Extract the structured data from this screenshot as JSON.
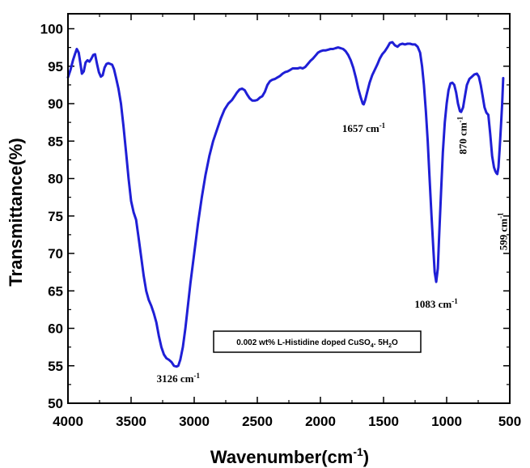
{
  "chart_data": {
    "type": "line",
    "xlabel": "Wavenumber(cm",
    "xlabel_sup": "-1",
    "xlabel_suffix": ")",
    "ylabel": "Transmittance(%)",
    "xlim": [
      4000,
      500
    ],
    "ylim": [
      50,
      102
    ],
    "x_reversed": true,
    "xticks": [
      4000,
      3500,
      3000,
      2500,
      2000,
      1500,
      1000,
      500
    ],
    "yticks": [
      50,
      55,
      60,
      65,
      70,
      75,
      80,
      85,
      90,
      95,
      100
    ],
    "grid": false,
    "line_color": "#1f1fd6",
    "legend": {
      "text_main": "0.002 wt% L-Histidine doped CuSO",
      "sub1": "4",
      "text_mid": ". 5H",
      "sub2": "2",
      "text_end": "O",
      "placement": "center-bottom"
    },
    "annotations": [
      {
        "label": "3126 cm",
        "sup": "-1",
        "x": 3126,
        "y": 55
      },
      {
        "label": "1657 cm",
        "sup": "-1",
        "x": 1657,
        "y": 90
      },
      {
        "label": "1083 cm",
        "sup": "-1",
        "x": 1083,
        "y": 66
      },
      {
        "label": "870 cm",
        "sup": "-1",
        "x": 870,
        "y": 89
      },
      {
        "label": "599 cm",
        "sup": "-1",
        "x": 599,
        "y": 80.5
      }
    ],
    "series": [
      {
        "points": [
          [
            4000,
            93.5
          ],
          [
            3980,
            94.5
          ],
          [
            3960,
            95.8
          ],
          [
            3945,
            96.6
          ],
          [
            3930,
            97.3
          ],
          [
            3915,
            96.8
          ],
          [
            3900,
            95.2
          ],
          [
            3890,
            94.0
          ],
          [
            3875,
            94.3
          ],
          [
            3860,
            95.5
          ],
          [
            3845,
            95.8
          ],
          [
            3830,
            95.6
          ],
          [
            3815,
            96.0
          ],
          [
            3800,
            96.5
          ],
          [
            3785,
            96.6
          ],
          [
            3770,
            95.3
          ],
          [
            3755,
            94.2
          ],
          [
            3740,
            93.6
          ],
          [
            3725,
            93.8
          ],
          [
            3710,
            94.8
          ],
          [
            3695,
            95.3
          ],
          [
            3680,
            95.4
          ],
          [
            3665,
            95.3
          ],
          [
            3650,
            95.2
          ],
          [
            3635,
            94.6
          ],
          [
            3620,
            93.5
          ],
          [
            3600,
            92.0
          ],
          [
            3580,
            90.0
          ],
          [
            3560,
            87.0
          ],
          [
            3540,
            83.5
          ],
          [
            3520,
            80.0
          ],
          [
            3500,
            77.0
          ],
          [
            3480,
            75.5
          ],
          [
            3460,
            74.5
          ],
          [
            3440,
            72.0
          ],
          [
            3420,
            69.5
          ],
          [
            3400,
            67.0
          ],
          [
            3380,
            65.0
          ],
          [
            3360,
            63.8
          ],
          [
            3340,
            63.0
          ],
          [
            3320,
            62.0
          ],
          [
            3300,
            60.8
          ],
          [
            3280,
            59.0
          ],
          [
            3260,
            57.5
          ],
          [
            3240,
            56.5
          ],
          [
            3220,
            56.0
          ],
          [
            3200,
            55.8
          ],
          [
            3180,
            55.5
          ],
          [
            3160,
            55.0
          ],
          [
            3140,
            54.9
          ],
          [
            3126,
            55.0
          ],
          [
            3110,
            55.8
          ],
          [
            3090,
            57.5
          ],
          [
            3070,
            60.0
          ],
          [
            3050,
            63.0
          ],
          [
            3030,
            66.0
          ],
          [
            3000,
            70.0
          ],
          [
            2970,
            74.0
          ],
          [
            2940,
            77.5
          ],
          [
            2910,
            80.5
          ],
          [
            2880,
            83.0
          ],
          [
            2850,
            85.0
          ],
          [
            2820,
            86.5
          ],
          [
            2790,
            88.0
          ],
          [
            2760,
            89.2
          ],
          [
            2730,
            90.0
          ],
          [
            2700,
            90.5
          ],
          [
            2680,
            91.0
          ],
          [
            2660,
            91.5
          ],
          [
            2640,
            91.9
          ],
          [
            2620,
            92.0
          ],
          [
            2600,
            91.8
          ],
          [
            2580,
            91.2
          ],
          [
            2560,
            90.7
          ],
          [
            2540,
            90.4
          ],
          [
            2520,
            90.4
          ],
          [
            2500,
            90.5
          ],
          [
            2480,
            90.8
          ],
          [
            2460,
            91.0
          ],
          [
            2440,
            91.6
          ],
          [
            2420,
            92.5
          ],
          [
            2400,
            93.0
          ],
          [
            2380,
            93.2
          ],
          [
            2360,
            93.3
          ],
          [
            2340,
            93.5
          ],
          [
            2320,
            93.7
          ],
          [
            2300,
            94.0
          ],
          [
            2280,
            94.2
          ],
          [
            2260,
            94.3
          ],
          [
            2240,
            94.5
          ],
          [
            2220,
            94.7
          ],
          [
            2200,
            94.7
          ],
          [
            2180,
            94.7
          ],
          [
            2160,
            94.8
          ],
          [
            2140,
            94.7
          ],
          [
            2120,
            94.9
          ],
          [
            2100,
            95.3
          ],
          [
            2080,
            95.7
          ],
          [
            2060,
            96.0
          ],
          [
            2040,
            96.4
          ],
          [
            2020,
            96.8
          ],
          [
            2000,
            97.0
          ],
          [
            1980,
            97.1
          ],
          [
            1960,
            97.1
          ],
          [
            1940,
            97.2
          ],
          [
            1920,
            97.3
          ],
          [
            1900,
            97.3
          ],
          [
            1880,
            97.4
          ],
          [
            1860,
            97.5
          ],
          [
            1840,
            97.4
          ],
          [
            1820,
            97.3
          ],
          [
            1800,
            97.0
          ],
          [
            1780,
            96.5
          ],
          [
            1760,
            95.8
          ],
          [
            1740,
            94.8
          ],
          [
            1720,
            93.5
          ],
          [
            1700,
            92.0
          ],
          [
            1680,
            90.8
          ],
          [
            1665,
            90.0
          ],
          [
            1657,
            89.9
          ],
          [
            1645,
            90.5
          ],
          [
            1630,
            91.5
          ],
          [
            1610,
            92.8
          ],
          [
            1590,
            93.8
          ],
          [
            1570,
            94.5
          ],
          [
            1550,
            95.2
          ],
          [
            1530,
            96.0
          ],
          [
            1510,
            96.6
          ],
          [
            1490,
            97.0
          ],
          [
            1470,
            97.5
          ],
          [
            1450,
            98.1
          ],
          [
            1430,
            98.2
          ],
          [
            1410,
            97.8
          ],
          [
            1390,
            97.6
          ],
          [
            1370,
            97.9
          ],
          [
            1350,
            98.0
          ],
          [
            1330,
            97.9
          ],
          [
            1310,
            98.0
          ],
          [
            1290,
            98.0
          ],
          [
            1270,
            97.9
          ],
          [
            1250,
            97.9
          ],
          [
            1230,
            97.6
          ],
          [
            1210,
            96.8
          ],
          [
            1195,
            95.0
          ],
          [
            1180,
            92.5
          ],
          [
            1165,
            89.0
          ],
          [
            1150,
            85.0
          ],
          [
            1135,
            80.0
          ],
          [
            1120,
            75.0
          ],
          [
            1105,
            70.5
          ],
          [
            1095,
            67.5
          ],
          [
            1083,
            66.2
          ],
          [
            1070,
            68.0
          ],
          [
            1060,
            72.0
          ],
          [
            1045,
            78.0
          ],
          [
            1030,
            83.5
          ],
          [
            1015,
            87.5
          ],
          [
            1000,
            90.0
          ],
          [
            985,
            91.8
          ],
          [
            970,
            92.7
          ],
          [
            955,
            92.8
          ],
          [
            940,
            92.5
          ],
          [
            925,
            91.5
          ],
          [
            910,
            90.0
          ],
          [
            895,
            89.0
          ],
          [
            885,
            88.9
          ],
          [
            870,
            89.5
          ],
          [
            855,
            91.0
          ],
          [
            840,
            92.5
          ],
          [
            820,
            93.3
          ],
          [
            800,
            93.6
          ],
          [
            780,
            93.9
          ],
          [
            760,
            94.0
          ],
          [
            745,
            93.6
          ],
          [
            730,
            92.5
          ],
          [
            715,
            91.0
          ],
          [
            700,
            89.5
          ],
          [
            685,
            88.8
          ],
          [
            670,
            88.5
          ],
          [
            655,
            86.0
          ],
          [
            640,
            83.0
          ],
          [
            625,
            81.5
          ],
          [
            615,
            81.0
          ],
          [
            605,
            80.7
          ],
          [
            599,
            80.6
          ],
          [
            590,
            81.5
          ],
          [
            580,
            84.0
          ],
          [
            570,
            87.0
          ],
          [
            560,
            90.0
          ],
          [
            552,
            93.4
          ]
        ]
      }
    ]
  }
}
